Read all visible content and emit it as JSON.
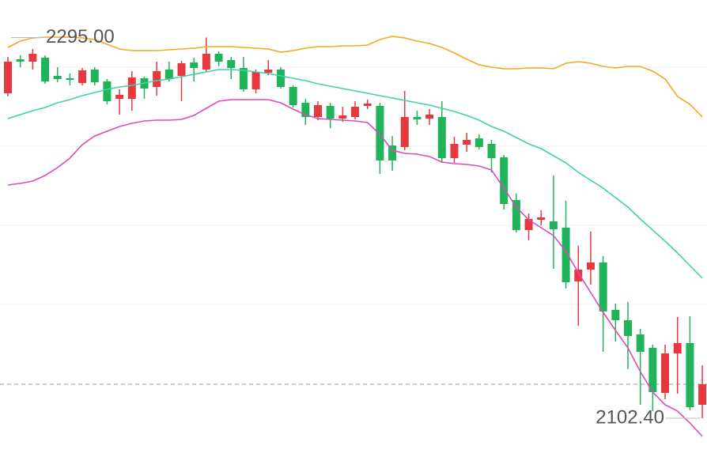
{
  "chart_data": {
    "type": "candlestick",
    "categories": [
      null,
      null,
      null,
      null,
      null,
      null,
      null,
      null,
      null,
      null,
      null,
      null,
      null,
      null,
      null,
      null,
      null,
      null,
      null,
      null,
      null,
      null,
      null,
      null,
      null,
      null,
      null,
      null,
      null,
      null,
      null,
      null,
      null,
      null,
      null,
      null,
      null,
      null,
      null,
      null,
      null,
      null,
      null,
      null,
      null,
      null,
      null,
      null,
      null,
      null,
      null,
      null,
      null,
      null,
      null,
      null,
      null
    ],
    "open": [
      2266.8,
      2284,
      2282.8,
      2284.8,
      2275.6,
      2274.4,
      2272,
      2278.8,
      2272.8,
      2264,
      2264,
      2274.4,
      2270,
      2278.8,
      2275.6,
      2282.4,
      2278.8,
      2286.8,
      2283.6,
      2279.6,
      2268.8,
      2277.2,
      2278.8,
      2270,
      2262,
      2254.8,
      2260.4,
      2254,
      2254.8,
      2260.4,
      2260.4,
      2240.4,
      2239.6,
      2254.8,
      2254,
      2254.8,
      2234,
      2240.8,
      2244,
      2241.2,
      2234.4,
      2212.8,
      2197.6,
      2202.8,
      2202,
      2198.8,
      2171.6,
      2177.6,
      2181.2,
      2157.2,
      2152,
      2144.8,
      2138,
      2115.2,
      2135.2,
      2140.4,
      2109.2
    ],
    "high": [
      2285.2,
      2286,
      2289.2,
      2286,
      2280,
      2276.8,
      2279.6,
      2280,
      2274,
      2268.8,
      2278,
      2275.2,
      2282.8,
      2282.8,
      2283.2,
      2284.8,
      2295,
      2288,
      2285.2,
      2285.2,
      2278.8,
      2283.6,
      2280,
      2270.8,
      2264,
      2262.8,
      2262,
      2260,
      2262.8,
      2263.6,
      2262,
      2245.2,
      2268,
      2258,
      2258.8,
      2262.8,
      2244.8,
      2246.8,
      2246,
      2243.2,
      2235.6,
      2216,
      2206,
      2207.6,
      2225.2,
      2212.4,
      2189.6,
      2196.8,
      2184.4,
      2160.4,
      2161.2,
      2147.6,
      2139.6,
      2139.6,
      2153.6,
      2154,
      2129.2
    ],
    "low": [
      2265.2,
      2280,
      2278.8,
      2271.6,
      2272.4,
      2270.8,
      2270.8,
      2270.8,
      2261.2,
      2256,
      2258,
      2264,
      2265.6,
      2272.8,
      2262.8,
      2272.8,
      2277.6,
      2280.4,
      2274,
      2267.6,
      2266.8,
      2276,
      2269.2,
      2259.6,
      2250.8,
      2253.2,
      2249.2,
      2252.4,
      2253.6,
      2258.8,
      2226,
      2227.6,
      2238,
      2250.8,
      2250.8,
      2231.6,
      2231.6,
      2237.2,
      2238.4,
      2226.8,
      2208,
      2196.4,
      2192.4,
      2200,
      2178,
      2168,
      2149.2,
      2170,
      2136,
      2141.2,
      2127.2,
      2109.2,
      2106,
      2112,
      2114.8,
      2106.4,
      2102.4
    ],
    "close": [
      2282.8,
      2282.8,
      2286.8,
      2272.8,
      2274,
      2273.6,
      2278.4,
      2272.4,
      2262.8,
      2266,
      2274.8,
      2269.2,
      2278,
      2274,
      2282,
      2279.6,
      2286.8,
      2282.8,
      2279.6,
      2268.8,
      2277.6,
      2278.8,
      2270,
      2260.8,
      2254.8,
      2260.8,
      2254,
      2255.6,
      2260,
      2261.6,
      2232.8,
      2232.8,
      2254.8,
      2253.6,
      2256,
      2234,
      2241.2,
      2243.2,
      2239.6,
      2234,
      2210.8,
      2197.6,
      2203.2,
      2204,
      2198,
      2171.2,
      2177.6,
      2181.2,
      2156.4,
      2152,
      2144,
      2136,
      2115.6,
      2135.2,
      2140.4,
      2108,
      2119.6
    ],
    "up_color": "#e5393f",
    "down_color": "#1fb35a",
    "overlays": [
      {
        "color": "#f2a922",
        "values": [
          2290,
          2293.2,
          2294.8,
          2295.2,
          2295.2,
          2295.2,
          2294.8,
          2294,
          2291.6,
          2289.2,
          2288.4,
          2288.4,
          2288.4,
          2288.8,
          2289.2,
          2289.6,
          2290.4,
          2290.4,
          2290.4,
          2290,
          2289.6,
          2289.2,
          2287.6,
          2288.4,
          2289.6,
          2290.4,
          2290.4,
          2290.8,
          2290.8,
          2291.2,
          2294,
          2295.6,
          2294.8,
          2293.2,
          2292,
          2290,
          2287.2,
          2284,
          2281.2,
          2280,
          2279.2,
          2279.2,
          2279.6,
          2279.6,
          2279.2,
          2282,
          2282.8,
          2282,
          2280.4,
          2279.6,
          2280.4,
          2280.4,
          2278,
          2274,
          2265.2,
          2261.2,
          2254.8
        ]
      },
      {
        "color": "#3dd3a6",
        "values": [
          2254,
          2256,
          2258,
          2259.6,
          2262,
          2263.6,
          2265.6,
          2267.2,
          2268.8,
          2270,
          2270.8,
          2272,
          2273.2,
          2274,
          2275.2,
          2276.4,
          2277.6,
          2278.8,
          2278.8,
          2278.4,
          2277.6,
          2276.8,
          2275.6,
          2274.4,
          2273.2,
          2271.6,
          2270.4,
          2269.2,
          2268,
          2266.8,
          2265.6,
          2264.4,
          2263.2,
          2262,
          2260.8,
          2259.2,
          2257.6,
          2255.6,
          2253.2,
          2250,
          2247.6,
          2244.4,
          2241.2,
          2238.8,
          2235.2,
          2231.6,
          2226.8,
          2222.8,
          2218.8,
          2214,
          2209.2,
          2203.2,
          2197.6,
          2192,
          2186,
          2179.6,
          2173.2
        ]
      },
      {
        "color": "#d94cb9",
        "values": [
          2220.4,
          2221.2,
          2222.4,
          2225.2,
          2229.2,
          2234,
          2240.8,
          2245.2,
          2247.6,
          2250,
          2251.6,
          2252.8,
          2253.2,
          2253.2,
          2253.6,
          2255.6,
          2259.2,
          2262.8,
          2263.6,
          2263.6,
          2263.6,
          2263.6,
          2262,
          2258.8,
          2256,
          2254,
          2253.6,
          2253.2,
          2252.8,
          2252,
          2246,
          2238,
          2236.4,
          2236,
          2234.8,
          2232,
          2231.2,
          2230.8,
          2230,
          2228,
          2218.8,
          2209.2,
          2202.8,
          2198.8,
          2194.8,
          2186.8,
          2176,
          2166,
          2156,
          2146.8,
          2138,
          2126,
          2115.6,
          2109.2,
          2106,
          2100,
          2093.2
        ]
      }
    ],
    "annotations": [
      {
        "value": 2295,
        "label": "2295.00"
      },
      {
        "value": 2102.4,
        "label": "2102.40"
      }
    ],
    "ylim": [
      2084.8,
      2314
    ],
    "yticks": [
      2160,
      2200,
      2240,
      2280
    ],
    "grid": true
  }
}
